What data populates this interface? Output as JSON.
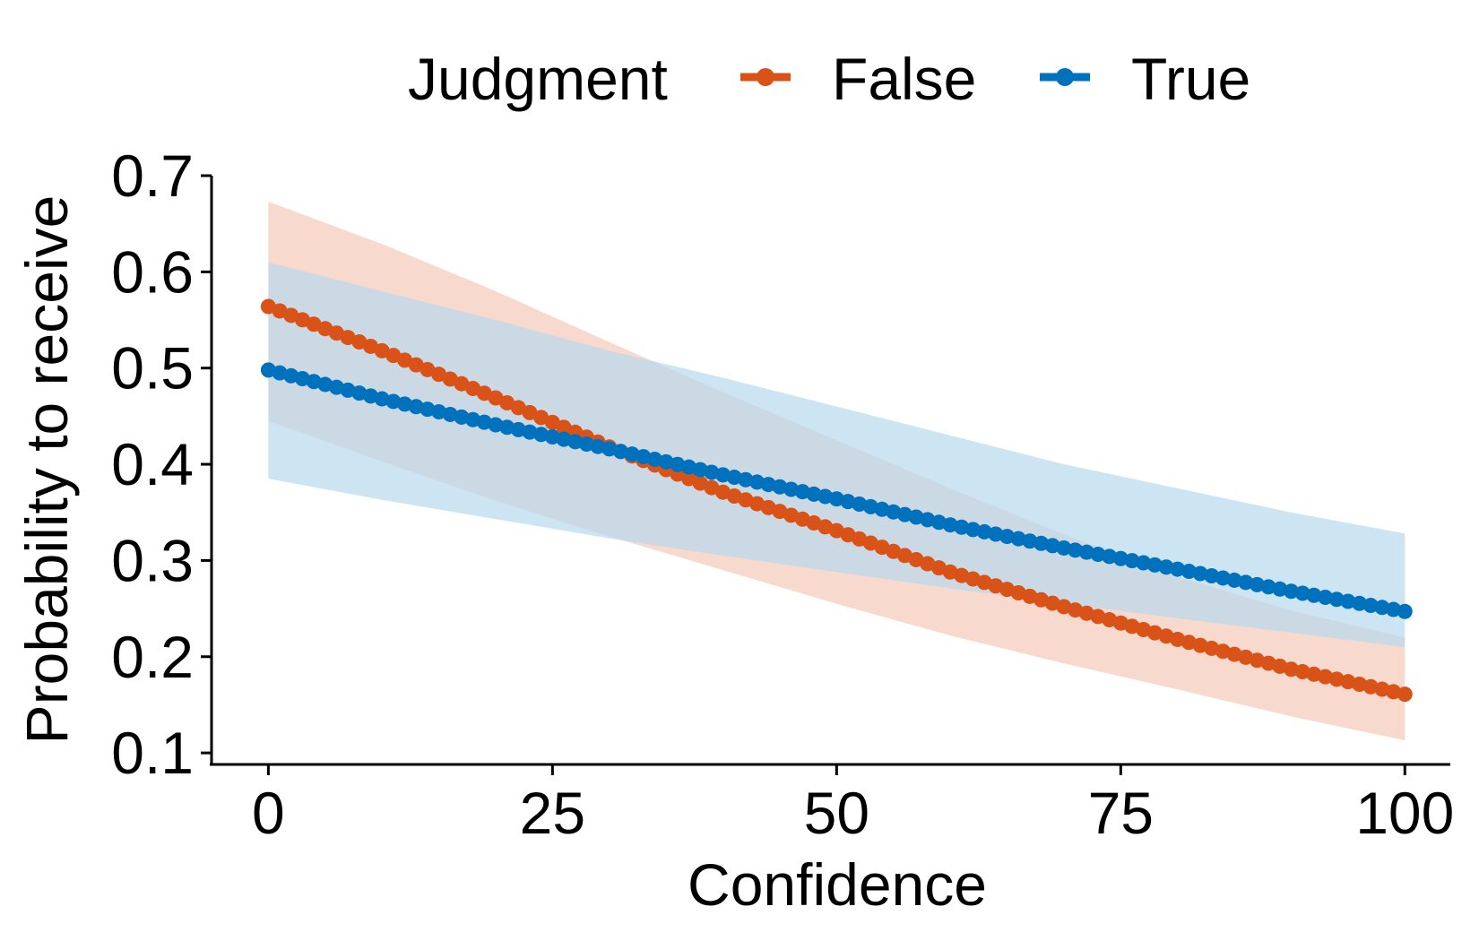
{
  "chart_data": {
    "type": "line",
    "title": "",
    "xlabel": "Confidence",
    "ylabel": "Probability to receive",
    "xlim": [
      -5,
      104
    ],
    "ylim": [
      0.088,
      0.7
    ],
    "x_ticks": [
      0,
      25,
      50,
      75,
      100
    ],
    "x_tick_labels": [
      "0",
      "25",
      "50",
      "75",
      "100"
    ],
    "y_ticks": [
      0.1,
      0.2,
      0.3,
      0.4,
      0.5,
      0.6,
      0.7
    ],
    "y_tick_labels": [
      "0.1",
      "0.2",
      "0.3",
      "0.4",
      "0.5",
      "0.6",
      "0.7"
    ],
    "grid": false,
    "legend": {
      "title": "Judgment",
      "position": "top"
    },
    "series": [
      {
        "name": "False",
        "color": "#D95319",
        "band_color": "#F4CBB8",
        "line_style": "solid",
        "x": [
          0,
          10,
          20,
          30,
          40,
          50,
          60,
          70,
          80,
          90,
          100
        ],
        "y": [
          0.564,
          0.518,
          0.469,
          0.418,
          0.371,
          0.331,
          0.288,
          0.252,
          0.218,
          0.187,
          0.161
        ],
        "ci_lower": [
          0.445,
          0.403,
          0.362,
          0.325,
          0.29,
          0.255,
          0.222,
          0.193,
          0.166,
          0.138,
          0.113
        ],
        "ci_upper": [
          0.673,
          0.629,
          0.58,
          0.527,
          0.475,
          0.425,
          0.375,
          0.327,
          0.283,
          0.248,
          0.22
        ]
      },
      {
        "name": "True",
        "color": "#0072BD",
        "band_color": "#B8D8EE",
        "line_style": "dashed",
        "x": [
          0,
          10,
          20,
          30,
          40,
          50,
          60,
          70,
          80,
          90,
          100
        ],
        "y": [
          0.498,
          0.468,
          0.441,
          0.416,
          0.389,
          0.364,
          0.337,
          0.313,
          0.291,
          0.268,
          0.247
        ],
        "ci_lower": [
          0.385,
          0.363,
          0.343,
          0.323,
          0.305,
          0.288,
          0.271,
          0.255,
          0.24,
          0.225,
          0.21
        ],
        "ci_upper": [
          0.61,
          0.58,
          0.55,
          0.518,
          0.49,
          0.46,
          0.43,
          0.4,
          0.375,
          0.35,
          0.328
        ]
      }
    ]
  }
}
